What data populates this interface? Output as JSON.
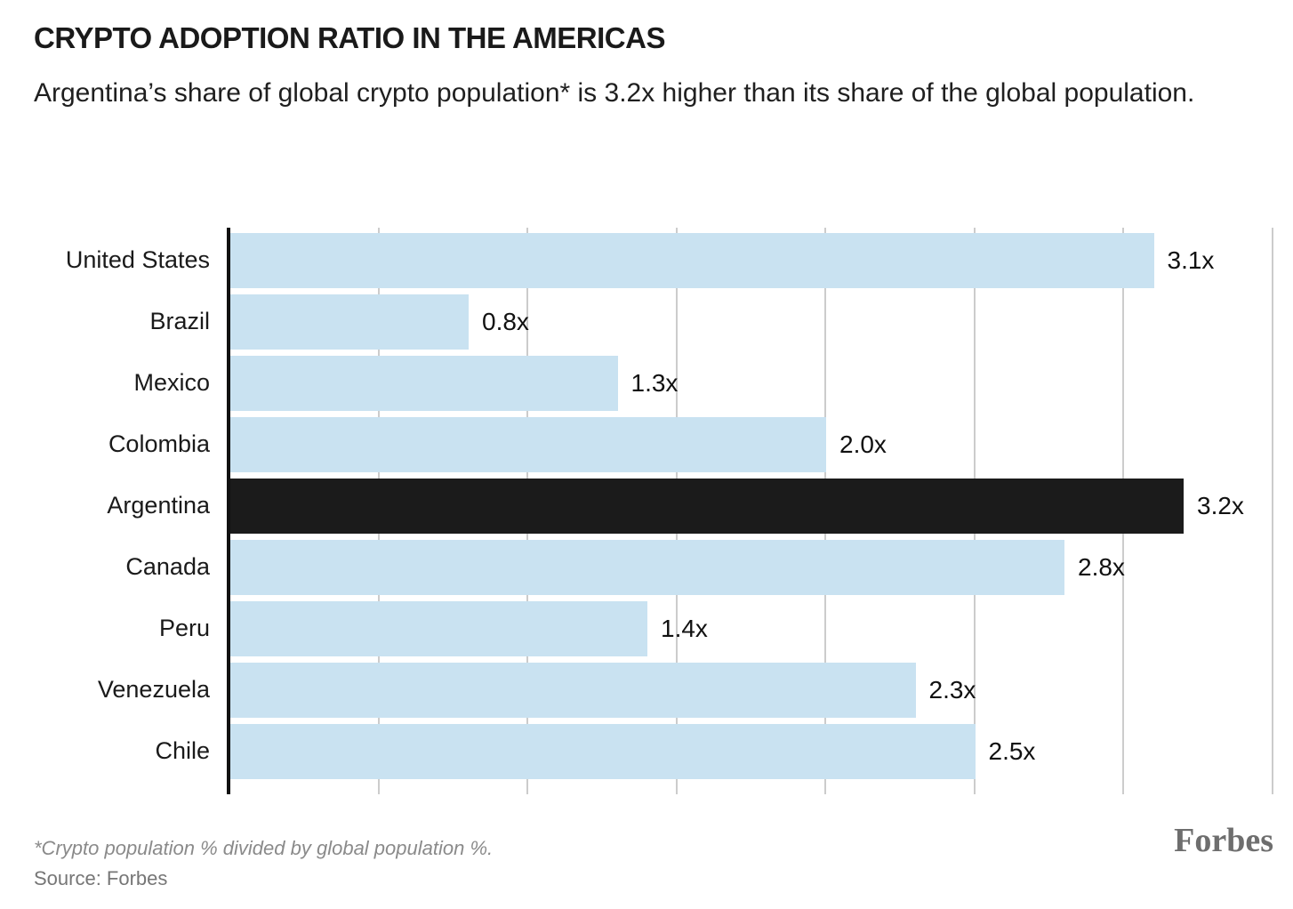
{
  "header": {
    "title": "CRYPTO ADOPTION RATIO IN THE AMERICAS",
    "subtitle": "Argentina’s share of global crypto population* is 3.2x higher than its share of the global population."
  },
  "chart_data": {
    "type": "bar",
    "orientation": "horizontal",
    "title": "CRYPTO ADOPTION RATIO IN THE AMERICAS",
    "subtitle": "Argentina’s share of global crypto population* is 3.2x higher than its share of the global population.",
    "categories": [
      "United States",
      "Brazil",
      "Mexico",
      "Colombia",
      "Argentina",
      "Canada",
      "Peru",
      "Venezuela",
      "Chile"
    ],
    "values": [
      3.1,
      0.8,
      1.3,
      2.0,
      3.2,
      2.8,
      1.4,
      2.3,
      2.5
    ],
    "value_labels": [
      "3.1x",
      "0.8x",
      "1.3x",
      "2.0x",
      "3.2x",
      "2.8x",
      "1.4x",
      "2.3x",
      "2.5x"
    ],
    "highlight_category": "Argentina",
    "xlabel": "",
    "ylabel": "",
    "xlim": [
      0,
      3.57
    ],
    "gridlines": [
      0.5,
      1.0,
      1.5,
      2.0,
      2.5,
      3.0,
      3.5
    ],
    "grid": "vertical",
    "legend": "none",
    "colors": {
      "bar": "#c9e2f1",
      "highlight_bar": "#1b1b1b",
      "gridline": "#cccccc",
      "axis": "#111111",
      "text": "#1a1a1a"
    }
  },
  "footer": {
    "footnote": "*Crypto population % divided by global population %.",
    "source": "Source: Forbes",
    "logo_text": "Forbes"
  }
}
